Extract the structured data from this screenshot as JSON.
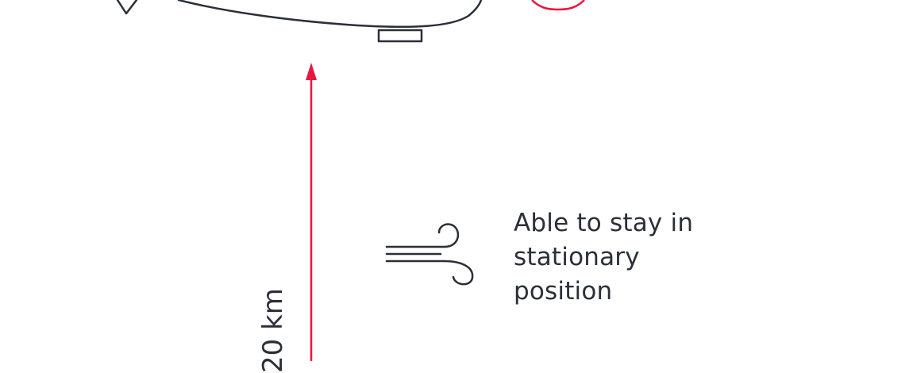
{
  "feature": {
    "icon": "wind-icon",
    "caption_lines": [
      "Able to stay in",
      "stationary",
      "position"
    ]
  },
  "altitude_label": "20 km",
  "colors": {
    "accent": "#e8173f",
    "stroke": "#2b2f38",
    "background": "#ffffff"
  }
}
